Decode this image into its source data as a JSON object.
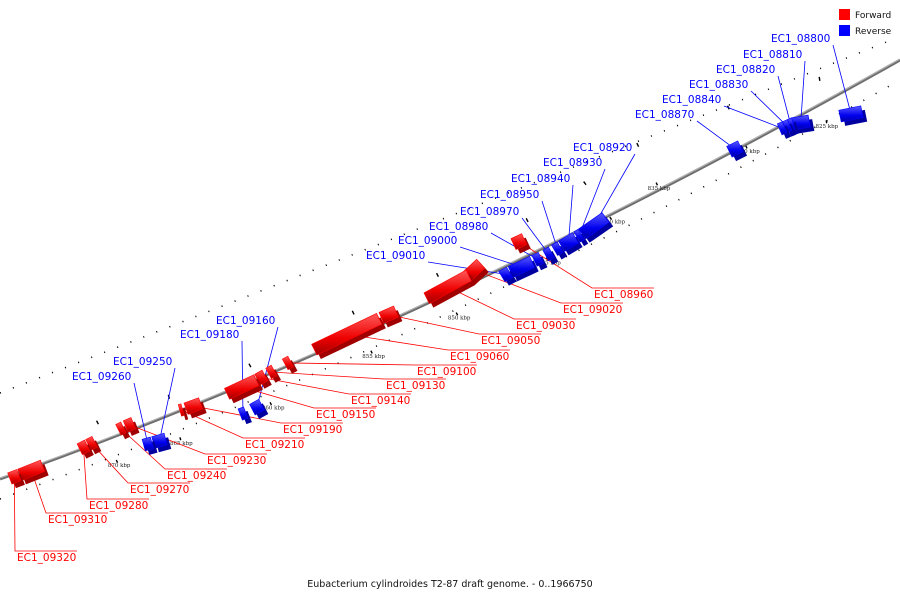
{
  "colors": {
    "forward": "#ff0000",
    "reverse": "#0000ff",
    "backbone": "#808080"
  },
  "legend": [
    {
      "label": "Forward",
      "color": "#ff0000"
    },
    {
      "label": "Reverse",
      "color": "#0000ff"
    }
  ],
  "caption": "Eubacterium cylindroides T2-87 draft genome. - 0..1966750",
  "ticks": [
    "825 kbp",
    "830 kbp",
    "835 kbp",
    "840 kbp",
    "845 kbp",
    "850 kbp",
    "855 kbp",
    "860 kbp",
    "865 kbp",
    "870 kbp"
  ],
  "genes": [
    {
      "label": "EC1_08800",
      "strand": "reverse",
      "start_kbp": 823.8,
      "end_kbp": 824.6
    },
    {
      "label": "EC1_08810",
      "strand": "reverse",
      "start_kbp": 825.5,
      "end_kbp": 826.0
    },
    {
      "label": "EC1_08820",
      "strand": "reverse",
      "start_kbp": 826.0,
      "end_kbp": 826.4
    },
    {
      "label": "EC1_08830",
      "strand": "reverse",
      "start_kbp": 826.4,
      "end_kbp": 826.8
    },
    {
      "label": "EC1_08840",
      "strand": "reverse",
      "start_kbp": 826.8,
      "end_kbp": 827.2
    },
    {
      "label": "EC1_08870",
      "strand": "reverse",
      "start_kbp": 830.5,
      "end_kbp": 831.6
    },
    {
      "label": "EC1_08920",
      "strand": "reverse",
      "start_kbp": 840.3,
      "end_kbp": 842.5
    },
    {
      "label": "EC1_08930",
      "strand": "reverse",
      "start_kbp": 842.5,
      "end_kbp": 842.8
    },
    {
      "label": "EC1_08940",
      "strand": "reverse",
      "start_kbp": 842.9,
      "end_kbp": 843.9
    },
    {
      "label": "EC1_08950",
      "strand": "reverse",
      "start_kbp": 844.0,
      "end_kbp": 844.4
    },
    {
      "label": "EC1_08970",
      "strand": "reverse",
      "start_kbp": 844.6,
      "end_kbp": 845.0
    },
    {
      "label": "EC1_08980",
      "strand": "reverse",
      "start_kbp": 845.2,
      "end_kbp": 845.5
    },
    {
      "label": "EC1_09000",
      "strand": "reverse",
      "start_kbp": 845.6,
      "end_kbp": 846.6
    },
    {
      "label": "EC1_09010",
      "strand": "reverse",
      "start_kbp": 846.7,
      "end_kbp": 847.1
    },
    {
      "label": "EC1_09160",
      "strand": "reverse",
      "start_kbp": 860.4,
      "end_kbp": 860.9
    },
    {
      "label": "EC1_09180",
      "strand": "reverse",
      "start_kbp": 861.2,
      "end_kbp": 861.5
    },
    {
      "label": "EC1_09250",
      "strand": "reverse",
      "start_kbp": 866.0,
      "end_kbp": 866.9
    },
    {
      "label": "EC1_09260",
      "strand": "reverse",
      "start_kbp": 867.0,
      "end_kbp": 867.6
    },
    {
      "label": "EC1_08960",
      "strand": "forward",
      "start_kbp": 845.5,
      "end_kbp": 846.0
    },
    {
      "label": "EC1_09020",
      "strand": "forward",
      "start_kbp": 847.6,
      "end_kbp": 848.6
    },
    {
      "label": "EC1_09030",
      "strand": "forward",
      "start_kbp": 848.7,
      "end_kbp": 850.9
    },
    {
      "label": "EC1_09050",
      "strand": "forward",
      "start_kbp": 852.8,
      "end_kbp": 853.7
    },
    {
      "label": "EC1_09060",
      "strand": "forward",
      "start_kbp": 853.8,
      "end_kbp": 857.1
    },
    {
      "label": "EC1_09100",
      "strand": "forward",
      "start_kbp": 858.2,
      "end_kbp": 858.5
    },
    {
      "label": "EC1_09130",
      "strand": "forward",
      "start_kbp": 859.1,
      "end_kbp": 859.4
    },
    {
      "label": "EC1_09140",
      "strand": "forward",
      "start_kbp": 859.6,
      "end_kbp": 860.0
    },
    {
      "label": "EC1_09150",
      "strand": "forward",
      "start_kbp": 860.1,
      "end_kbp": 861.7
    },
    {
      "label": "EC1_09190",
      "strand": "forward",
      "start_kbp": 863.2,
      "end_kbp": 864.0
    },
    {
      "label": "EC1_09210",
      "strand": "forward",
      "start_kbp": 864.3,
      "end_kbp": 864.5
    },
    {
      "label": "EC1_09230",
      "strand": "forward",
      "start_kbp": 867.8,
      "end_kbp": 868.4
    },
    {
      "label": "EC1_09240",
      "strand": "forward",
      "start_kbp": 868.5,
      "end_kbp": 868.9
    },
    {
      "label": "EC1_09270",
      "strand": "forward",
      "start_kbp": 870.8,
      "end_kbp": 871.3
    },
    {
      "label": "EC1_09280",
      "strand": "forward",
      "start_kbp": 871.4,
      "end_kbp": 872.0
    },
    {
      "label": "EC1_09310",
      "strand": "forward",
      "start_kbp": 875.4,
      "end_kbp": 877.6
    },
    {
      "label": "EC1_09320",
      "strand": "forward",
      "start_kbp": 877.7,
      "end_kbp": 878.6
    }
  ]
}
